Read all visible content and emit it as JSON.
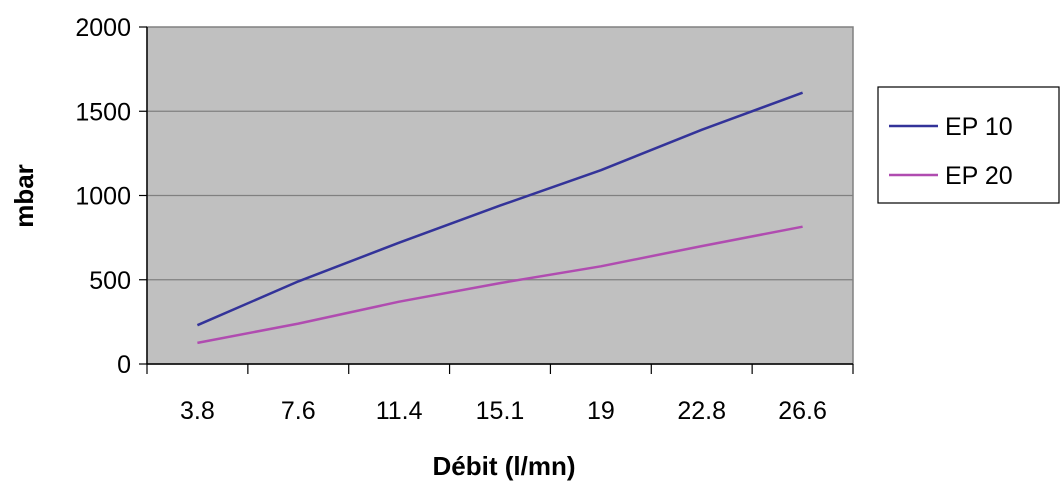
{
  "chart_data": {
    "type": "line",
    "title": "",
    "xlabel": "Débit (l/mn)",
    "ylabel": "mbar",
    "categories": [
      "3.8",
      "7.6",
      "11.4",
      "15.1",
      "19",
      "22.8",
      "26.6"
    ],
    "ylim": [
      0,
      2000
    ],
    "yticks": [
      0,
      500,
      1000,
      1500,
      2000
    ],
    "grid": true,
    "legend_position": "right",
    "plot_background": "#C0C0C0",
    "series": [
      {
        "name": "EP 10",
        "color": "#333399",
        "values": [
          230,
          490,
          720,
          940,
          1150,
          1390,
          1610
        ]
      },
      {
        "name": "EP 20",
        "color": "#B04CB0",
        "values": [
          125,
          240,
          370,
          480,
          580,
          700,
          815
        ]
      }
    ]
  }
}
